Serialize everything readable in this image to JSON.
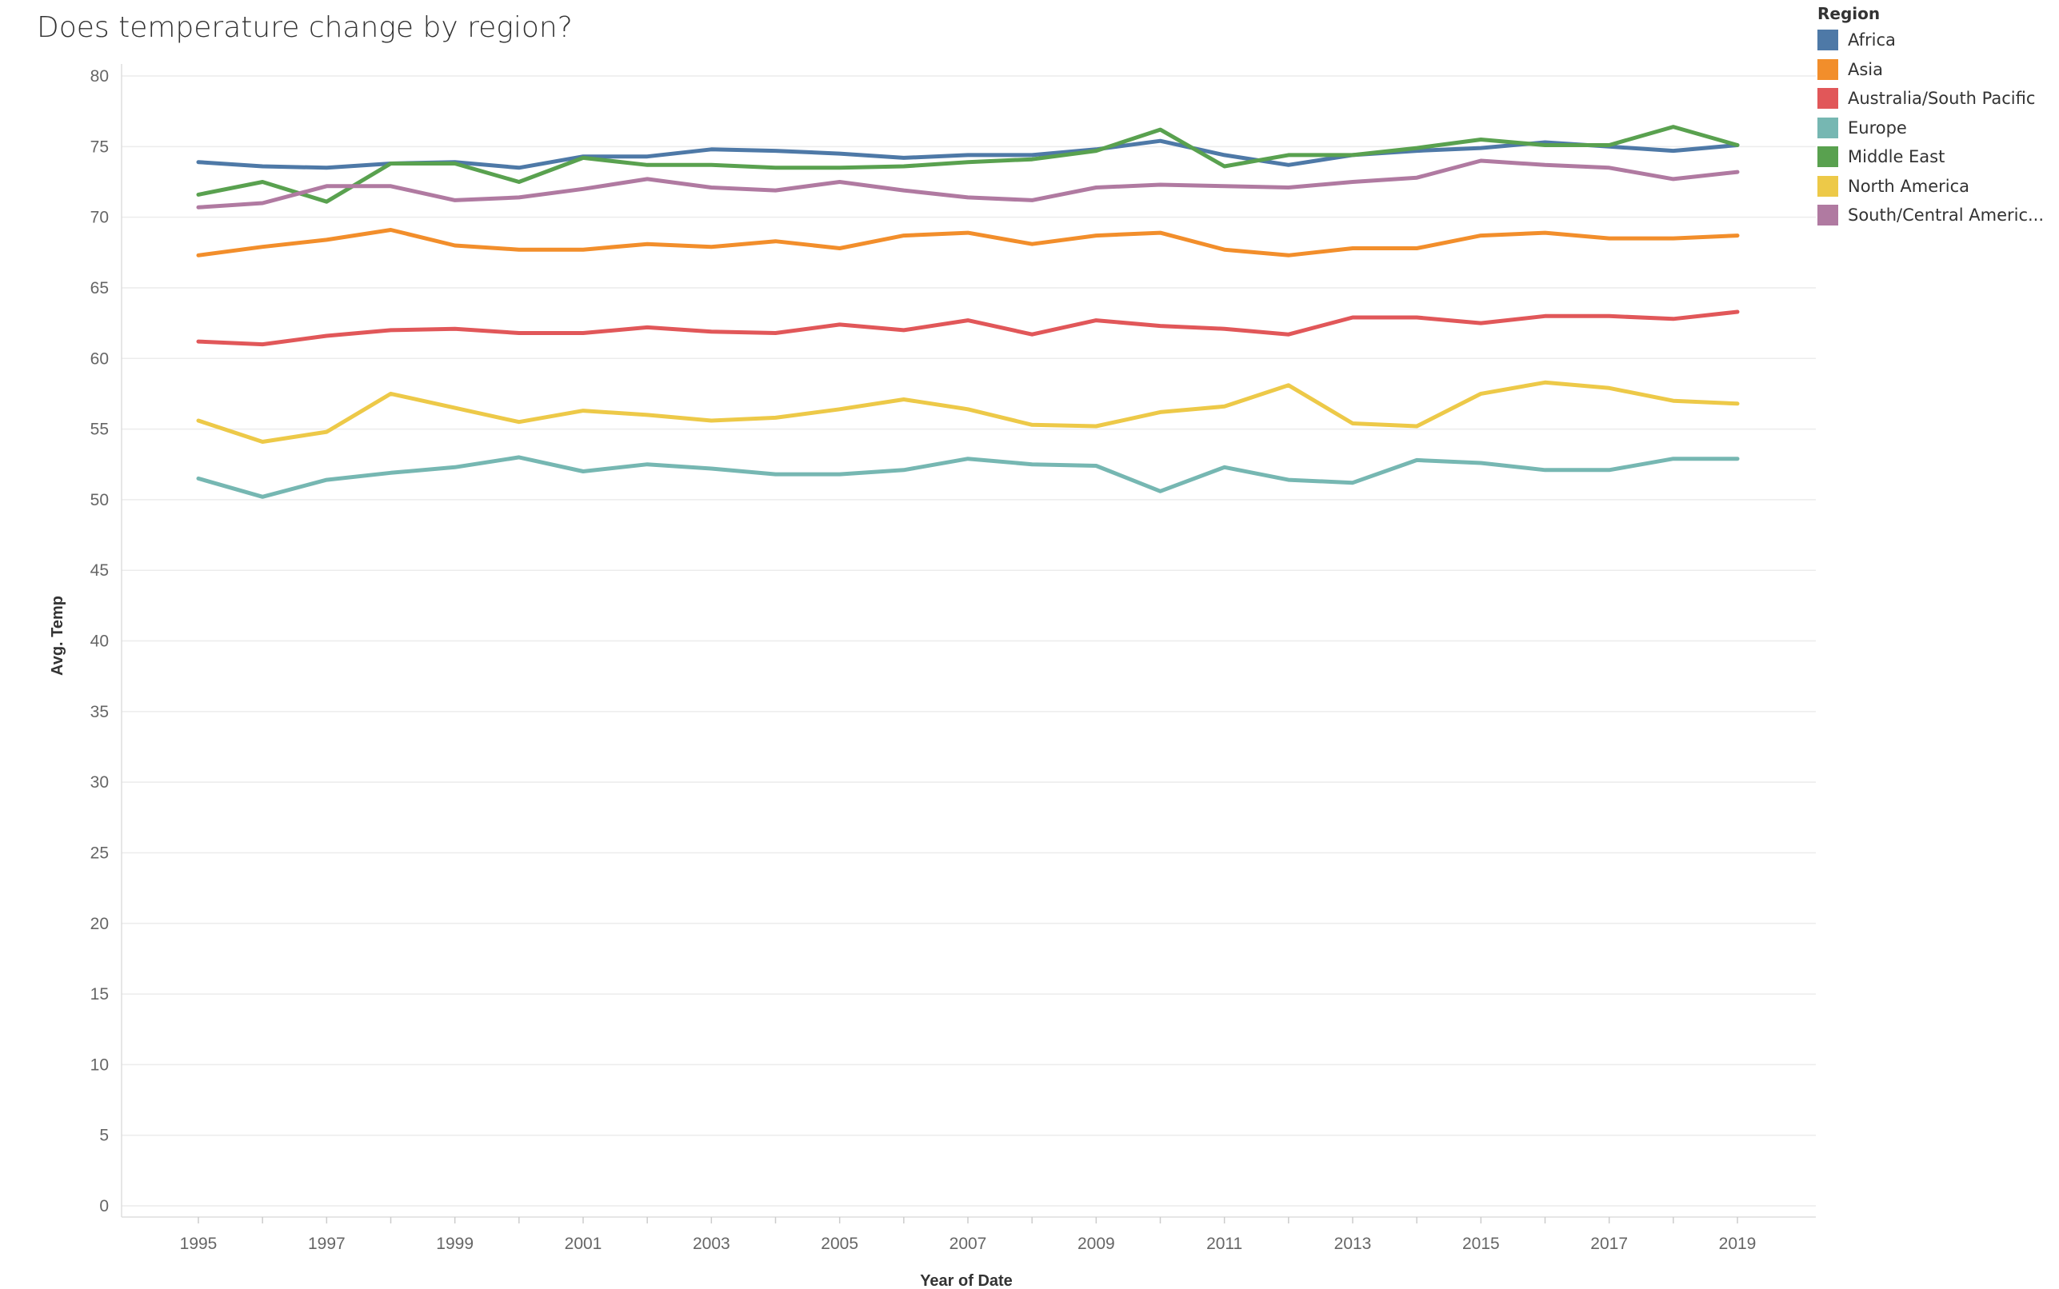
{
  "title": "Does temperature change by region?",
  "chart_data": {
    "type": "line",
    "title": "Does temperature change by region?",
    "xlabel": "Year of Date",
    "ylabel": "Avg. Temp",
    "ylim": [
      0,
      80
    ],
    "yticks": [
      "0",
      "5",
      "10",
      "15",
      "20",
      "25",
      "30",
      "35",
      "40",
      "45",
      "50",
      "55",
      "60",
      "65",
      "70",
      "75",
      "80"
    ],
    "xticks": [
      "1995",
      "1997",
      "1999",
      "2001",
      "2003",
      "2005",
      "2007",
      "2009",
      "2011",
      "2013",
      "2015",
      "2017",
      "2019"
    ],
    "x": [
      1995,
      1996,
      1997,
      1998,
      1999,
      2000,
      2001,
      2002,
      2003,
      2004,
      2005,
      2006,
      2007,
      2008,
      2009,
      2010,
      2011,
      2012,
      2013,
      2014,
      2015,
      2016,
      2017,
      2018,
      2019
    ],
    "grid": true,
    "legend_title": "Region",
    "legend_position": "top-right",
    "series": [
      {
        "name": "Africa",
        "color": "#4e79a7",
        "values": [
          73.9,
          73.6,
          73.5,
          73.8,
          73.9,
          73.5,
          74.3,
          74.3,
          74.8,
          74.7,
          74.5,
          74.2,
          74.4,
          74.4,
          74.8,
          75.4,
          74.4,
          73.7,
          74.4,
          74.7,
          74.9,
          75.3,
          75.0,
          74.7,
          75.1
        ]
      },
      {
        "name": "Asia",
        "color": "#f28e2b",
        "values": [
          67.3,
          67.9,
          68.4,
          69.1,
          68.0,
          67.7,
          67.7,
          68.1,
          67.9,
          68.3,
          67.8,
          68.7,
          68.9,
          68.1,
          68.7,
          68.9,
          67.7,
          67.3,
          67.8,
          67.8,
          68.7,
          68.9,
          68.5,
          68.5,
          68.7
        ]
      },
      {
        "name": "Australia/South Pacific",
        "color": "#e15759",
        "values": [
          61.2,
          61.0,
          61.6,
          62.0,
          62.1,
          61.8,
          61.8,
          62.2,
          61.9,
          61.8,
          62.4,
          62.0,
          62.7,
          61.7,
          62.7,
          62.3,
          62.1,
          61.7,
          62.9,
          62.9,
          62.5,
          63.0,
          63.0,
          62.8,
          63.3
        ]
      },
      {
        "name": "Europe",
        "color": "#76b7b2",
        "values": [
          51.5,
          50.2,
          51.4,
          51.9,
          52.3,
          53.0,
          52.0,
          52.5,
          52.2,
          51.8,
          51.8,
          52.1,
          52.9,
          52.5,
          52.4,
          50.6,
          52.3,
          51.4,
          51.2,
          52.8,
          52.6,
          52.1,
          52.1,
          52.9,
          52.9
        ]
      },
      {
        "name": "Middle East",
        "color": "#59a14f",
        "values": [
          71.6,
          72.5,
          71.1,
          73.8,
          73.8,
          72.5,
          74.2,
          73.7,
          73.7,
          73.5,
          73.5,
          73.6,
          73.9,
          74.1,
          74.7,
          76.2,
          73.6,
          74.4,
          74.4,
          74.9,
          75.5,
          75.1,
          75.1,
          76.4,
          75.1
        ]
      },
      {
        "name": "North America",
        "color": "#edc948",
        "values": [
          55.6,
          54.1,
          54.8,
          57.5,
          56.5,
          55.5,
          56.3,
          56.0,
          55.6,
          55.8,
          56.4,
          57.1,
          56.4,
          55.3,
          55.2,
          56.2,
          56.6,
          58.1,
          55.4,
          55.2,
          57.5,
          58.3,
          57.9,
          57.0,
          56.8
        ]
      },
      {
        "name": "South/Central Americ...",
        "color": "#b07aa1",
        "values": [
          70.7,
          71.0,
          72.2,
          72.2,
          71.2,
          71.4,
          72.0,
          72.7,
          72.1,
          71.9,
          72.5,
          71.9,
          71.4,
          71.2,
          72.1,
          72.3,
          72.2,
          72.1,
          72.5,
          72.8,
          74.0,
          73.7,
          73.5,
          72.7,
          73.2
        ]
      }
    ]
  }
}
